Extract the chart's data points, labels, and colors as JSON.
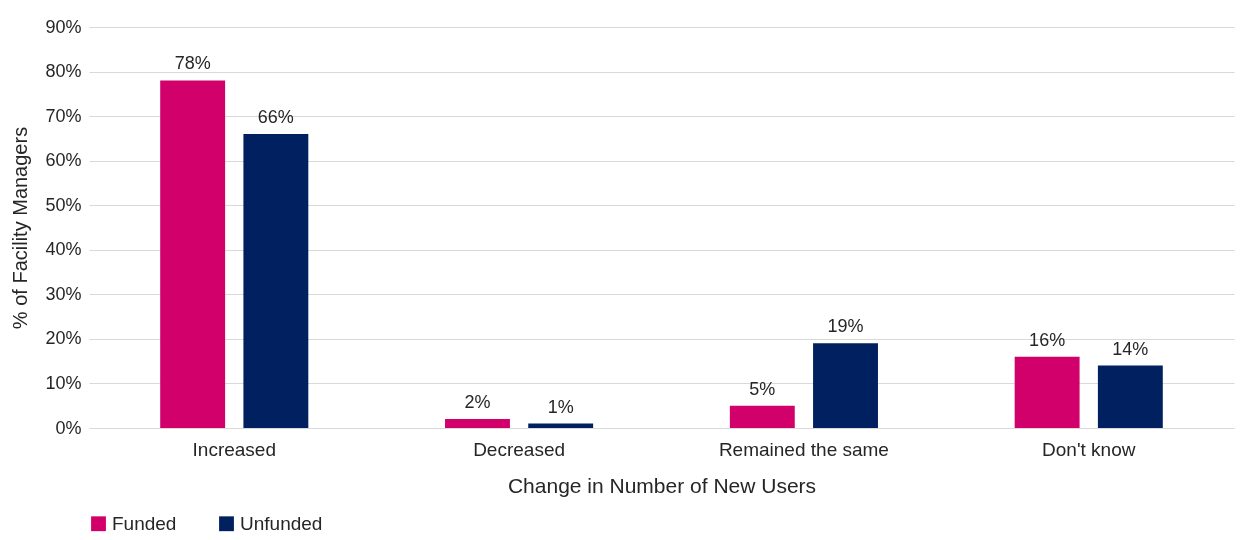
{
  "chart_data": {
    "type": "bar",
    "xlabel": "Change in Number of New Users",
    "ylabel": "% of Facility Managers",
    "categories": [
      "Increased",
      "Decreased",
      "Remained the same",
      "Don't know"
    ],
    "series": [
      {
        "name": "Funded",
        "color": "#d1006b",
        "values": [
          78,
          2,
          5,
          16
        ],
        "value_labels": [
          "78%",
          "2%",
          "5%",
          "16%"
        ]
      },
      {
        "name": "Unfunded",
        "color": "#002060",
        "values": [
          66,
          1,
          19,
          14
        ],
        "value_labels": [
          "66%",
          "1%",
          "19%",
          "14%"
        ]
      }
    ],
    "ylim": [
      0,
      90
    ],
    "yticks": [
      {
        "value": 0,
        "label": "0%"
      },
      {
        "value": 10,
        "label": "10%"
      },
      {
        "value": 20,
        "label": "20%"
      },
      {
        "value": 30,
        "label": "30%"
      },
      {
        "value": 40,
        "label": "40%"
      },
      {
        "value": 50,
        "label": "50%"
      },
      {
        "value": 60,
        "label": "60%"
      },
      {
        "value": 70,
        "label": "70%"
      },
      {
        "value": 80,
        "label": "80%"
      },
      {
        "value": 90,
        "label": "90%"
      }
    ],
    "grid": "y",
    "legend": "bottom"
  }
}
